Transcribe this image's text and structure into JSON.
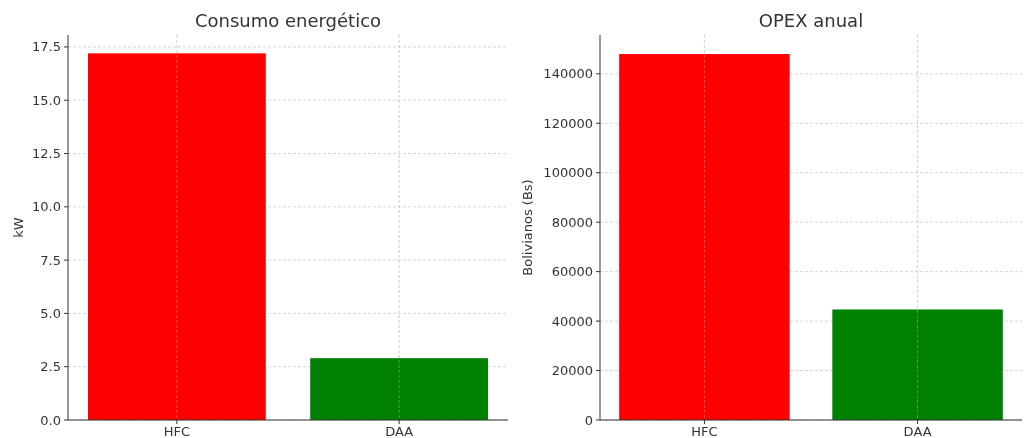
{
  "chart_data": [
    {
      "type": "bar",
      "title": "Consumo energético",
      "ylabel": "kW",
      "categories": [
        "HFC",
        "DAA"
      ],
      "values": [
        17.2,
        2.9
      ],
      "colors": [
        "#ff0000",
        "#008000"
      ],
      "ylim": [
        0,
        18.06
      ],
      "yticks": [
        {
          "value": 0,
          "label": "0.0"
        },
        {
          "value": 2.5,
          "label": "2.5"
        },
        {
          "value": 5,
          "label": "5.0"
        },
        {
          "value": 7.5,
          "label": "7.5"
        },
        {
          "value": 10,
          "label": "10.0"
        },
        {
          "value": 12.5,
          "label": "12.5"
        },
        {
          "value": 15,
          "label": "15.0"
        },
        {
          "value": 17.5,
          "label": "17.5"
        }
      ],
      "grid": true
    },
    {
      "type": "bar",
      "title": "OPEX anual",
      "ylabel": "Bolivianos (Bs)",
      "categories": [
        "HFC",
        "DAA"
      ],
      "values": [
        148000,
        44700
      ],
      "colors": [
        "#ff0000",
        "#008000"
      ],
      "ylim": [
        0,
        155700
      ],
      "yticks": [
        0,
        20000,
        40000,
        60000,
        80000,
        100000,
        120000,
        140000
      ],
      "grid": true
    }
  ]
}
